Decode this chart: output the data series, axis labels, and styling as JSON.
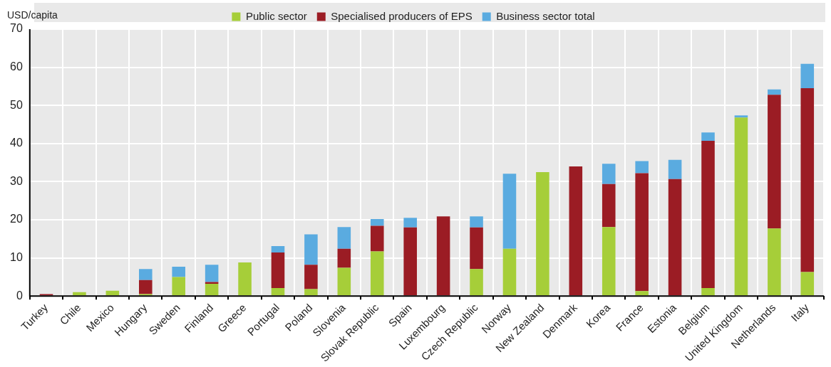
{
  "chart_data": {
    "type": "bar",
    "stacked": true,
    "ylabel": "USD/capita",
    "categories": [
      "Turkey",
      "Chile",
      "Mexico",
      "Hungary",
      "Sweden",
      "Finland",
      "Greece",
      "Portugal",
      "Poland",
      "Slovenia",
      "Slovak Republic",
      "Spain",
      "Luxembourg",
      "Czech Republic",
      "Norway",
      "New Zealand",
      "Denmark",
      "Korea",
      "France",
      "Estonia",
      "Belgium",
      "United Kingdom",
      "Netherlands",
      "Italy"
    ],
    "series": [
      {
        "name": "Public sector",
        "color": "#a6ce39",
        "values": [
          0,
          1.0,
          1.4,
          0.5,
          5.0,
          3.2,
          8.8,
          2.1,
          1.8,
          7.4,
          11.7,
          0,
          0,
          7.1,
          12.4,
          32.5,
          0,
          18.1,
          1.3,
          0,
          2.1,
          46.8,
          17.7,
          6.3
        ]
      },
      {
        "name": "Specialised producers of EPS",
        "color": "#9b1c24",
        "values": [
          0.5,
          0,
          0,
          3.7,
          0,
          0.5,
          0,
          9.3,
          6.4,
          5.0,
          6.7,
          18.0,
          20.9,
          10.9,
          0,
          0,
          34.0,
          11.3,
          30.9,
          30.7,
          38.6,
          0,
          35.1,
          48.2
        ]
      },
      {
        "name": "Business sector total",
        "color": "#5aabe0",
        "values": [
          0,
          0,
          0,
          2.9,
          2.7,
          4.5,
          0,
          1.7,
          8.0,
          5.7,
          1.8,
          2.5,
          0,
          2.9,
          19.7,
          0,
          0,
          5.3,
          3.2,
          5.0,
          2.2,
          0.6,
          1.4,
          6.4
        ]
      }
    ],
    "ylim": [
      0,
      70
    ],
    "yticks": [
      0,
      10,
      20,
      30,
      40,
      50,
      60,
      70
    ],
    "grid": true,
    "legend": "top"
  }
}
